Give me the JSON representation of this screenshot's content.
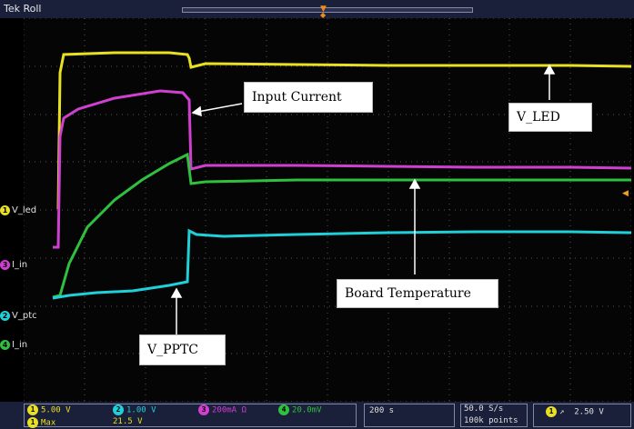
{
  "topbar": {
    "mode": "Tek Roll"
  },
  "channels": [
    {
      "num": "1",
      "label": "V_led",
      "color": "#e8e020"
    },
    {
      "num": "3",
      "label": "I_in",
      "color": "#d040d0"
    },
    {
      "num": "2",
      "label": "V_ptc",
      "color": "#20d0d8"
    },
    {
      "num": "4",
      "label": "I_in",
      "color": "#30c040"
    }
  ],
  "annotations": {
    "input_current": "Input Current",
    "v_led": "V_LED",
    "board_temperature": "Board Temperature",
    "v_pptc": "V_PPTC"
  },
  "status": {
    "ch1_scale": "5.00 V",
    "ch2_scale": "1.00 V",
    "ch3_scale": "200mA Ω",
    "ch4_scale": "20.0mV",
    "measure_label": "Max",
    "measure_value": "21.5 V",
    "timebase": "200 s",
    "sample_rate": "50.0 S/s",
    "record_length": "100k points",
    "trigger_level": "2.50 V",
    "trigger_slope": "↗"
  },
  "colors": {
    "ch1": "#e8e020",
    "ch2": "#20d0d8",
    "ch3": "#d040d0",
    "ch4": "#30c040"
  }
}
